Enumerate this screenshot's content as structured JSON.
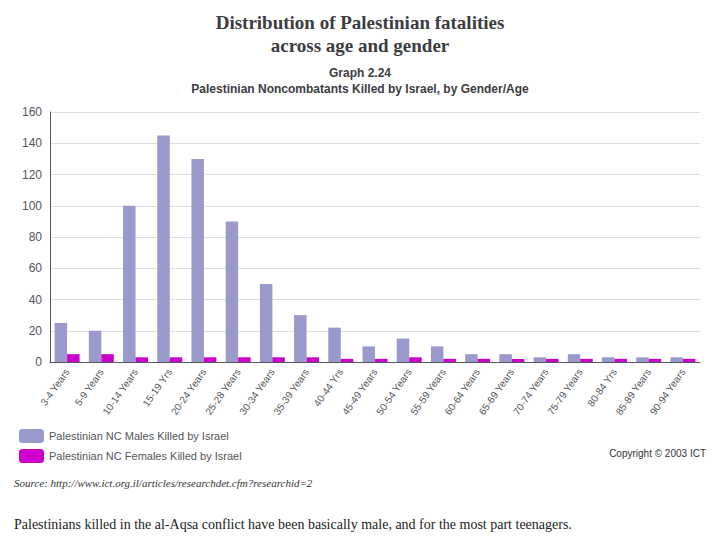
{
  "chart_data": {
    "type": "bar",
    "title": "Distribution of Palestinian fatalities\nacross age and gender",
    "subtitle": "Graph 2.24\nPalestinian Noncombatants Killed by Israel, by Gender/Age",
    "categories": [
      "3-4 Years",
      "5-9 Years",
      "10-14 Years",
      "15-19 Yrs",
      "20-24 Years",
      "25-28 Years",
      "30-34 Years",
      "35-39 Years",
      "40-44 Yrs",
      "45-49 Years",
      "50-54 Years",
      "55-59 Years",
      "60-64 Years",
      "65-69 Years",
      "70-74 Years",
      "75-79 Years",
      "80-84 Yrs",
      "85-89 Years",
      "90-94 Years"
    ],
    "series": [
      {
        "name": "Palestinian NC Males Killed by Israel",
        "color": "#9999CC",
        "values": [
          25,
          20,
          100,
          145,
          130,
          90,
          50,
          30,
          22,
          10,
          15,
          10,
          5,
          5,
          3,
          5,
          3,
          3,
          3
        ]
      },
      {
        "name": "Palestinian NC Females Killed by Israel",
        "color": "#CC00CC",
        "values": [
          5,
          5,
          3,
          3,
          3,
          3,
          3,
          3,
          2,
          2,
          3,
          2,
          2,
          2,
          2,
          2,
          2,
          2,
          2
        ]
      }
    ],
    "ylim": [
      0,
      160
    ],
    "yticks": [
      0,
      20,
      40,
      60,
      80,
      100,
      120,
      140,
      160
    ],
    "grid": true,
    "legend": "lower left",
    "annotations": [
      "Copyright © 2003 ICT",
      "Source: http://www.ict.org.il/articles/researchdet.cfm?researchid=2",
      "Palestinians killed in the al-Aqsa conflict have been basically male, and for the most part teenagers."
    ]
  }
}
